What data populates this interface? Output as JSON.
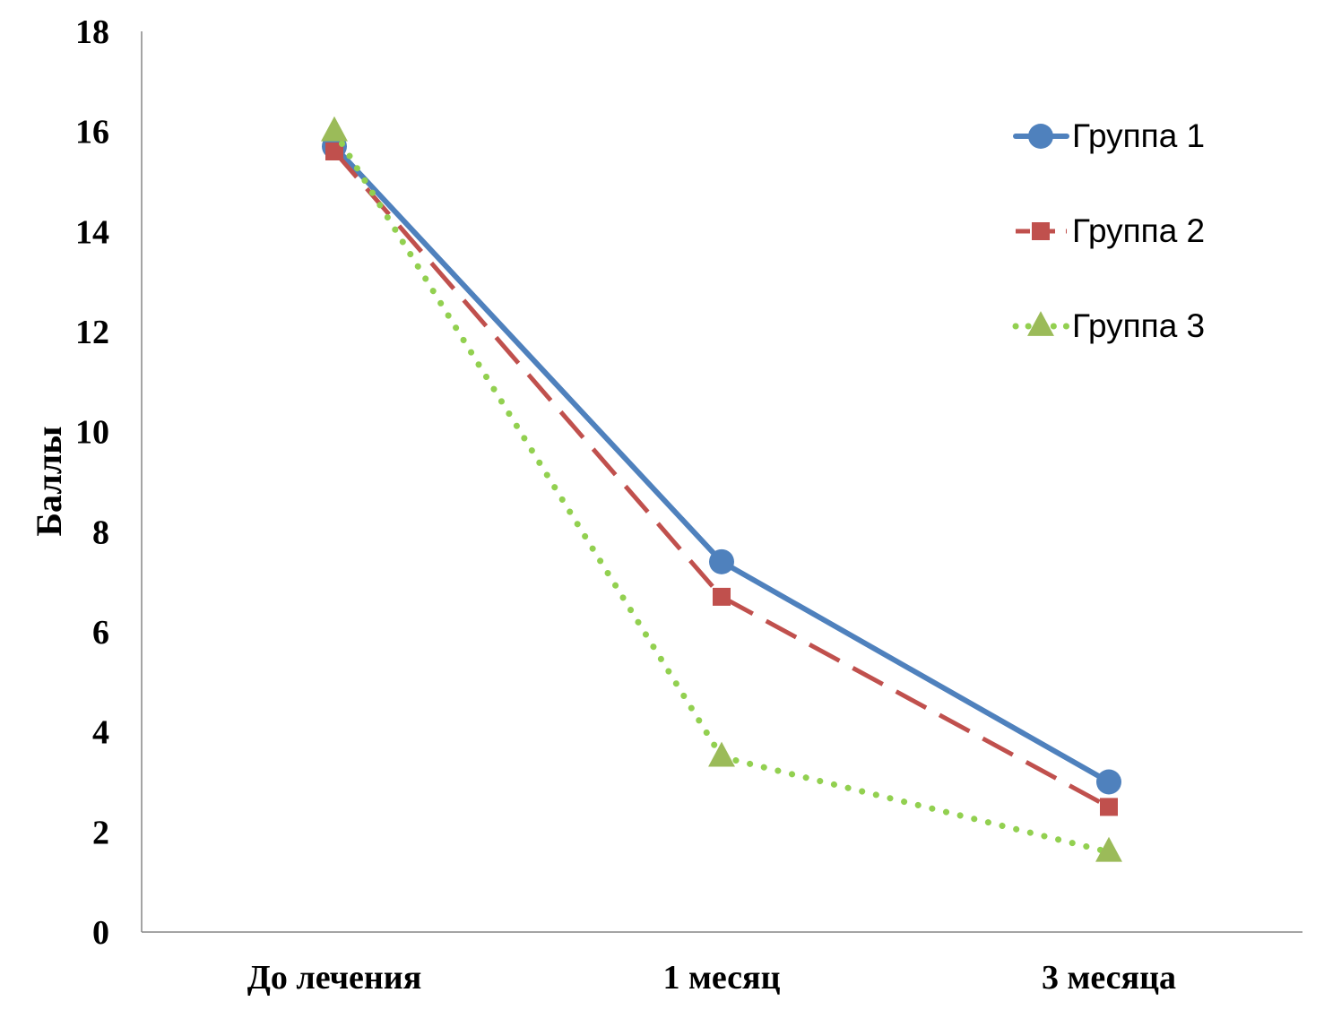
{
  "chart_data": {
    "type": "line",
    "title": "",
    "xlabel": "",
    "ylabel": "Баллы",
    "categories": [
      "До лечения",
      "1 месяц",
      "3 месяца"
    ],
    "ylim": [
      0,
      18
    ],
    "yticks": [
      "0",
      "2",
      "4",
      "6",
      "8",
      "10",
      "12",
      "14",
      "16",
      "18"
    ],
    "grid": false,
    "legend_position": "top-right",
    "series": [
      {
        "name": "Группа 1",
        "values": [
          15.7,
          7.4,
          3.0
        ],
        "color": "#4F81BD",
        "marker": "circle",
        "line_style": "solid"
      },
      {
        "name": "Группа 2",
        "values": [
          15.6,
          6.7,
          2.5
        ],
        "color": "#C0504D",
        "marker": "square",
        "line_style": "dashed"
      },
      {
        "name": "Группа 3",
        "values": [
          16.0,
          3.5,
          1.6
        ],
        "color": "#92D050",
        "marker_color": "#9BBB59",
        "marker": "triangle",
        "line_style": "dotted"
      }
    ]
  }
}
